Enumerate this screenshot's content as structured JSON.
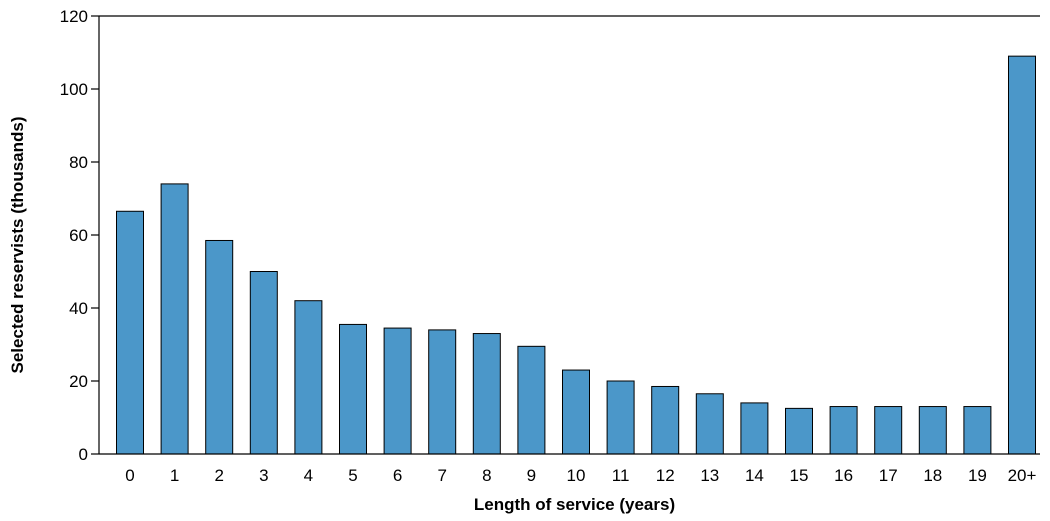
{
  "chart_data": {
    "type": "bar",
    "categories": [
      "0",
      "1",
      "2",
      "3",
      "4",
      "5",
      "6",
      "7",
      "8",
      "9",
      "10",
      "11",
      "12",
      "13",
      "14",
      "15",
      "16",
      "17",
      "18",
      "19",
      "20+"
    ],
    "values": [
      66.5,
      74,
      58.5,
      50,
      42,
      35.5,
      34.5,
      34,
      33,
      29.5,
      23,
      20,
      18.5,
      16.5,
      14,
      12.5,
      13,
      13,
      13,
      13,
      109
    ],
    "title": "",
    "xlabel": "Length of service (years)",
    "ylabel": "Selected reservists (thousands)",
    "ylim": [
      0,
      120
    ],
    "yticks": [
      0,
      20,
      40,
      60,
      80,
      100,
      120
    ],
    "grid": false,
    "bar_color": "#4b97c9",
    "bar_outline_color": "#000000"
  }
}
